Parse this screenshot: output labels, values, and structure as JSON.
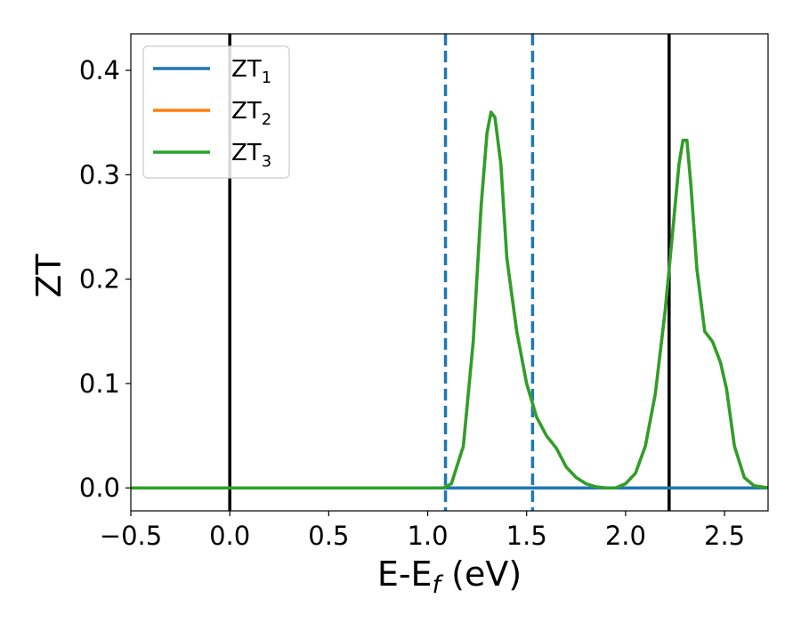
{
  "chart_data": {
    "type": "line",
    "xlabel": "E-E",
    "xlabel_sub": "f",
    "xlabel_unit": " (eV)",
    "ylabel": "ZT",
    "xlim": [
      -0.5,
      2.72
    ],
    "ylim": [
      -0.022,
      0.435
    ],
    "xticks": [
      -0.5,
      0.0,
      0.5,
      1.0,
      1.5,
      2.0,
      2.5
    ],
    "xtick_labels": [
      "−0.5",
      "0.0",
      "0.5",
      "1.0",
      "1.5",
      "2.0",
      "2.5"
    ],
    "yticks": [
      0.0,
      0.1,
      0.2,
      0.3,
      0.4
    ],
    "ytick_labels": [
      "0.0",
      "0.1",
      "0.2",
      "0.3",
      "0.4"
    ],
    "grid": false,
    "legend_position": "top-left",
    "vertical_lines": [
      {
        "x": 0.0,
        "style": "solid",
        "color": "#000000"
      },
      {
        "x": 1.09,
        "style": "dashed",
        "color": "#1f77b4"
      },
      {
        "x": 1.53,
        "style": "dashed",
        "color": "#1f77b4"
      },
      {
        "x": 2.22,
        "style": "solid",
        "color": "#000000"
      }
    ],
    "series": [
      {
        "name": "ZT",
        "sub": "1",
        "color": "#1f77b4",
        "x": [
          -0.5,
          2.72
        ],
        "y": [
          0.0,
          0.0
        ]
      },
      {
        "name": "ZT",
        "sub": "2",
        "color": "#ff7f0e",
        "x": [
          -0.5,
          1.08,
          1.12,
          1.18,
          1.23,
          1.27,
          1.3,
          1.32,
          1.34,
          1.37,
          1.4,
          1.45,
          1.5,
          1.55,
          1.6,
          1.65,
          1.7,
          1.75,
          1.8,
          1.85,
          1.9,
          1.95,
          2.0,
          2.05,
          2.1,
          2.15,
          2.2,
          2.24,
          2.27,
          2.29,
          2.31,
          2.33,
          2.36,
          2.4,
          2.44,
          2.48,
          2.51,
          2.55,
          2.6,
          2.65,
          2.72
        ],
        "y": [
          0.0,
          0.0,
          0.004,
          0.04,
          0.14,
          0.27,
          0.34,
          0.36,
          0.355,
          0.31,
          0.22,
          0.15,
          0.1,
          0.068,
          0.05,
          0.038,
          0.02,
          0.01,
          0.004,
          0.001,
          0.0,
          0.0,
          0.004,
          0.014,
          0.04,
          0.09,
          0.17,
          0.25,
          0.31,
          0.333,
          0.333,
          0.29,
          0.21,
          0.15,
          0.14,
          0.12,
          0.095,
          0.04,
          0.01,
          0.002,
          0.0
        ]
      },
      {
        "name": "ZT",
        "sub": "3",
        "color": "#2ca02c",
        "x": [
          -0.5,
          1.08,
          1.12,
          1.18,
          1.23,
          1.27,
          1.3,
          1.32,
          1.34,
          1.37,
          1.4,
          1.45,
          1.5,
          1.55,
          1.6,
          1.65,
          1.7,
          1.75,
          1.8,
          1.85,
          1.9,
          1.95,
          2.0,
          2.05,
          2.1,
          2.15,
          2.2,
          2.24,
          2.27,
          2.29,
          2.31,
          2.33,
          2.36,
          2.4,
          2.44,
          2.48,
          2.51,
          2.55,
          2.6,
          2.65,
          2.72
        ],
        "y": [
          0.0,
          0.0,
          0.004,
          0.04,
          0.14,
          0.27,
          0.34,
          0.36,
          0.355,
          0.31,
          0.22,
          0.15,
          0.1,
          0.068,
          0.05,
          0.038,
          0.02,
          0.01,
          0.004,
          0.001,
          0.0,
          0.0,
          0.004,
          0.014,
          0.04,
          0.09,
          0.17,
          0.25,
          0.31,
          0.333,
          0.333,
          0.29,
          0.21,
          0.15,
          0.14,
          0.12,
          0.095,
          0.04,
          0.01,
          0.002,
          0.0
        ]
      }
    ]
  }
}
